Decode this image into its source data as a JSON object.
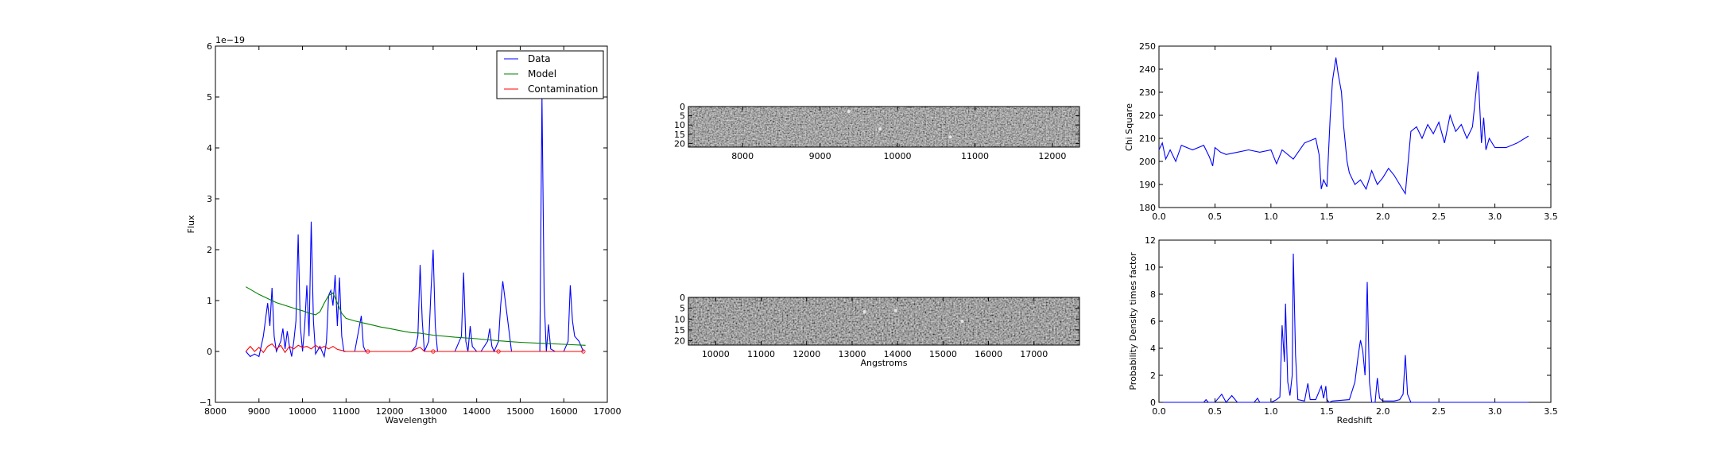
{
  "chart_data": [
    {
      "type": "line",
      "xlabel": "Wavelength",
      "ylabel": "Flux",
      "scale_label": "1e−19",
      "xlim": [
        8000,
        17000
      ],
      "ylim": [
        -1,
        6
      ],
      "xticks": [
        "8000",
        "9000",
        "10000",
        "11000",
        "12000",
        "13000",
        "14000",
        "15000",
        "16000",
        "17000"
      ],
      "yticks": [
        "−1",
        "0",
        "1",
        "2",
        "3",
        "4",
        "5",
        "6"
      ],
      "legend_position": "top-right",
      "series": [
        {
          "name": "Data",
          "color": "#0000ff",
          "x": [
            8700,
            8800,
            8900,
            9000,
            9100,
            9200,
            9250,
            9300,
            9350,
            9400,
            9500,
            9550,
            9600,
            9650,
            9700,
            9750,
            9800,
            9850,
            9900,
            9950,
            10000,
            10050,
            10100,
            10150,
            10200,
            10250,
            10300,
            10400,
            10450,
            10500,
            10550,
            10600,
            10650,
            10700,
            10750,
            10800,
            10850,
            10900,
            10950,
            11000,
            11200,
            11350,
            11400,
            11450,
            11500,
            11700,
            12000,
            12300,
            12500,
            12600,
            12650,
            12700,
            12750,
            12800,
            12900,
            12950,
            13000,
            13050,
            13100,
            13300,
            13500,
            13650,
            13700,
            13750,
            13800,
            13850,
            13900,
            14000,
            14100,
            14250,
            14300,
            14350,
            14400,
            14500,
            14550,
            14600,
            14700,
            14800,
            15000,
            15300,
            15400,
            15450,
            15500,
            15550,
            15600,
            15650,
            15700,
            15800,
            16000,
            16100,
            16150,
            16200,
            16250,
            16350,
            16450
          ],
          "y": [
            0,
            -0.1,
            -0.05,
            -0.1,
            0.3,
            0.95,
            0.5,
            1.25,
            0.3,
            0,
            0.2,
            0.45,
            0.05,
            0.4,
            0.1,
            -0.1,
            0.2,
            0.6,
            2.3,
            0.5,
            0,
            0.5,
            1.3,
            0.3,
            2.55,
            0.6,
            -0.05,
            0.1,
            0,
            -0.1,
            0.2,
            1.1,
            1.2,
            0.9,
            1.5,
            0.5,
            1.45,
            0.3,
            0,
            0,
            0,
            0.7,
            0.1,
            0,
            0,
            0,
            0,
            0,
            0,
            0.1,
            0.3,
            1.7,
            0.6,
            0,
            0.2,
            1.2,
            2.0,
            0.5,
            0,
            0,
            0,
            0.3,
            1.55,
            0.2,
            0,
            0.5,
            0.1,
            0,
            0,
            0.2,
            0.45,
            0.1,
            0,
            0.2,
            0.9,
            1.38,
            0.7,
            0,
            0,
            0,
            0,
            0,
            5.0,
            1.0,
            0,
            0.53,
            0.05,
            0,
            0,
            0.2,
            1.3,
            0.6,
            0.3,
            0.2,
            0
          ]
        },
        {
          "name": "Model",
          "color": "#008000",
          "x": [
            8700,
            9000,
            9400,
            9800,
            10000,
            10200,
            10300,
            10400,
            10500,
            10600,
            10700,
            10800,
            10900,
            11000,
            11200,
            11400,
            11600,
            11800,
            12000,
            12300,
            12500,
            12700,
            13000,
            13500,
            14000,
            14500,
            15000,
            15500,
            16000,
            16500
          ],
          "y": [
            1.27,
            1.12,
            0.96,
            0.85,
            0.8,
            0.74,
            0.72,
            0.78,
            0.95,
            1.1,
            1.15,
            0.95,
            0.75,
            0.65,
            0.6,
            0.56,
            0.52,
            0.48,
            0.45,
            0.4,
            0.37,
            0.36,
            0.32,
            0.28,
            0.25,
            0.21,
            0.18,
            0.16,
            0.14,
            0.12
          ]
        },
        {
          "name": "Contamination",
          "color": "#ff0000",
          "x": [
            8700,
            8800,
            8900,
            9000,
            9100,
            9200,
            9300,
            9400,
            9500,
            9600,
            9700,
            9800,
            9900,
            10000,
            10100,
            10200,
            10300,
            10400,
            10500,
            10600,
            10700,
            10800,
            10900,
            11000,
            11500,
            12000,
            12500,
            12600,
            12700,
            12800,
            13000,
            13500,
            14000,
            14500,
            15000,
            16000,
            16450
          ],
          "y": [
            0,
            0.1,
            0,
            0.08,
            -0.02,
            0.1,
            0.15,
            0.05,
            0.12,
            -0.02,
            0.1,
            0.05,
            0.12,
            0.08,
            0.1,
            0.05,
            0.12,
            0.06,
            0.1,
            0.05,
            0.1,
            0.04,
            0.02,
            0,
            0,
            0,
            0,
            0.05,
            0.08,
            0,
            0,
            0,
            0,
            0,
            0,
            0,
            0
          ]
        }
      ]
    },
    {
      "type": "heatmap",
      "xticks": [
        "8000",
        "9000",
        "10000",
        "11000",
        "12000"
      ],
      "xlim": [
        7300,
        12350
      ],
      "yticks": [
        "0",
        "5",
        "10",
        "15",
        "20"
      ],
      "ylim": [
        0,
        22
      ]
    },
    {
      "type": "heatmap",
      "xlabel": "Angstroms",
      "xticks": [
        "10000",
        "11000",
        "12000",
        "13000",
        "14000",
        "15000",
        "16000",
        "17000"
      ],
      "xlim": [
        9400,
        18000
      ],
      "yticks": [
        "0",
        "5",
        "10",
        "15",
        "20"
      ],
      "ylim": [
        0,
        22
      ]
    },
    {
      "type": "line",
      "ylabel": "Chi Square",
      "xlim": [
        0,
        3.5
      ],
      "ylim": [
        180,
        250
      ],
      "xticks": [
        "0.0",
        "0.5",
        "1.0",
        "1.5",
        "2.0",
        "2.5",
        "3.0",
        "3.5"
      ],
      "yticks": [
        "180",
        "190",
        "200",
        "210",
        "220",
        "230",
        "240",
        "250"
      ],
      "series": [
        {
          "color": "#0000ff",
          "x": [
            0,
            0.03,
            0.06,
            0.1,
            0.15,
            0.2,
            0.3,
            0.4,
            0.45,
            0.48,
            0.5,
            0.55,
            0.6,
            0.7,
            0.8,
            0.9,
            1.0,
            1.05,
            1.1,
            1.2,
            1.3,
            1.35,
            1.4,
            1.43,
            1.45,
            1.47,
            1.5,
            1.53,
            1.55,
            1.58,
            1.6,
            1.63,
            1.65,
            1.68,
            1.7,
            1.75,
            1.8,
            1.85,
            1.9,
            1.95,
            2.0,
            2.05,
            2.1,
            2.15,
            2.2,
            2.25,
            2.3,
            2.35,
            2.4,
            2.45,
            2.5,
            2.55,
            2.6,
            2.65,
            2.7,
            2.75,
            2.8,
            2.85,
            2.88,
            2.9,
            2.92,
            2.95,
            3.0,
            3.1,
            3.2,
            3.3
          ],
          "y": [
            205,
            208,
            201,
            205,
            200,
            207,
            205,
            207,
            202,
            198,
            206,
            204,
            203,
            204,
            205,
            204,
            205,
            199,
            205,
            201,
            208,
            209,
            210,
            203,
            188,
            192,
            189,
            220,
            235,
            245,
            238,
            230,
            215,
            200,
            195,
            190,
            192,
            188,
            196,
            190,
            193,
            197,
            194,
            190,
            186,
            213,
            215,
            210,
            216,
            212,
            217,
            208,
            220,
            213,
            216,
            210,
            215,
            239,
            208,
            219,
            205,
            210,
            206,
            206,
            208,
            211
          ]
        }
      ]
    },
    {
      "type": "line",
      "xlabel": "Redshift",
      "ylabel": "Probability Density times factor",
      "xlim": [
        0,
        3.5
      ],
      "ylim": [
        0,
        12
      ],
      "xticks": [
        "0.0",
        "0.5",
        "1.0",
        "1.5",
        "2.0",
        "2.5",
        "3.0",
        "3.5"
      ],
      "yticks": [
        "0",
        "2",
        "4",
        "6",
        "8",
        "10",
        "12"
      ],
      "series": [
        {
          "color": "#0000ff",
          "x": [
            0,
            0.4,
            0.42,
            0.44,
            0.5,
            0.56,
            0.58,
            0.6,
            0.65,
            0.68,
            0.7,
            0.75,
            0.85,
            0.88,
            0.9,
            1.0,
            1.05,
            1.08,
            1.1,
            1.12,
            1.13,
            1.15,
            1.17,
            1.19,
            1.2,
            1.22,
            1.24,
            1.3,
            1.33,
            1.35,
            1.4,
            1.45,
            1.47,
            1.49,
            1.5,
            1.52,
            1.55,
            1.7,
            1.75,
            1.78,
            1.8,
            1.82,
            1.84,
            1.86,
            1.88,
            1.9,
            1.93,
            1.95,
            1.97,
            2.0,
            2.1,
            2.15,
            2.18,
            2.2,
            2.22,
            2.25,
            2.5,
            3.0,
            3.3
          ],
          "y": [
            0,
            0,
            0.2,
            0,
            0,
            0.6,
            0.3,
            0,
            0.5,
            0.2,
            0,
            0,
            0,
            0.3,
            0,
            0,
            0.2,
            0.4,
            5.7,
            3.0,
            7.3,
            1.5,
            0.5,
            2.0,
            11.0,
            3.5,
            0.2,
            0.1,
            1.4,
            0.2,
            0.2,
            1.2,
            0.3,
            1.2,
            0.2,
            0,
            0.1,
            0.2,
            1.5,
            3.5,
            4.6,
            3.8,
            2.0,
            8.9,
            1.5,
            0,
            0,
            1.8,
            0.3,
            0.1,
            0.1,
            0.2,
            0.6,
            3.5,
            0.6,
            0,
            0,
            0,
            0
          ]
        }
      ]
    }
  ]
}
